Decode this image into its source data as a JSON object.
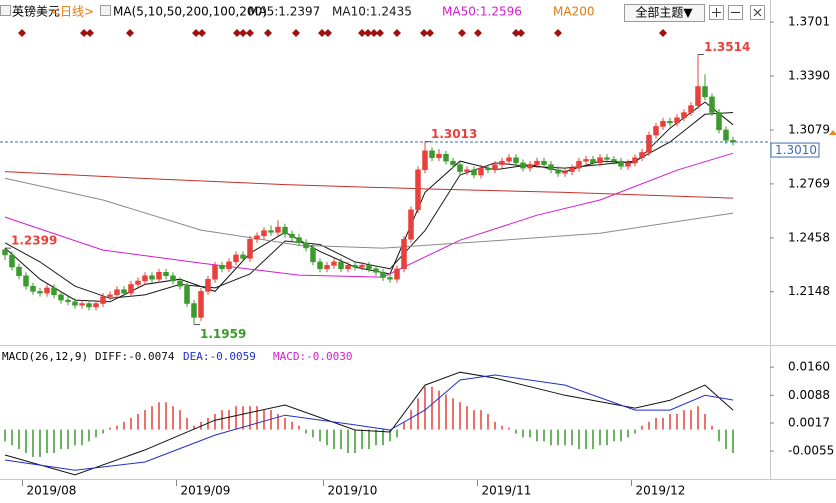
{
  "toolbar": {
    "theme_button": "全部主题▼"
  },
  "chart_data": [
    {
      "type": "candlestick",
      "title": "英镑美元",
      "period": "<日线>",
      "ma_params": "MA(5,10,50,200,100,200)",
      "xlim": [
        -0.714,
        109.286
      ],
      "ylim": [
        1.187,
        1.3805
      ],
      "yticks": [
        1.3701,
        {
          "value": 1.339,
          "label": "1.3390"
        },
        1.3079,
        1.2769,
        1.2458,
        1.2148
      ],
      "up_color": "#e8403a",
      "down_color": "#3b9a2c",
      "last_price": {
        "value": 1.301,
        "label": "1.3010"
      },
      "candles": [
        [
          1.239,
          1.2399,
          1.233,
          1.236
        ],
        [
          1.236,
          1.238,
          1.227,
          1.229
        ],
        [
          1.229,
          1.231,
          1.222,
          1.224
        ],
        [
          1.224,
          1.226,
          1.216,
          1.218
        ],
        [
          1.218,
          1.22,
          1.213,
          1.215
        ],
        [
          1.215,
          1.217,
          1.212,
          1.214
        ],
        [
          1.214,
          1.219,
          1.212,
          1.217
        ],
        [
          1.217,
          1.219,
          1.211,
          1.213
        ],
        [
          1.213,
          1.215,
          1.208,
          1.21
        ],
        [
          1.21,
          1.212,
          1.207,
          1.209
        ],
        [
          1.209,
          1.211,
          1.205,
          1.207
        ],
        [
          1.207,
          1.21,
          1.205,
          1.208
        ],
        [
          1.208,
          1.21,
          1.204,
          1.206
        ],
        [
          1.206,
          1.21,
          1.204,
          1.208
        ],
        [
          1.208,
          1.214,
          1.206,
          1.212
        ],
        [
          1.212,
          1.215,
          1.21,
          1.213
        ],
        [
          1.213,
          1.218,
          1.211,
          1.216
        ],
        [
          1.216,
          1.218,
          1.212,
          1.214
        ],
        [
          1.214,
          1.221,
          1.212,
          1.219
        ],
        [
          1.219,
          1.223,
          1.217,
          1.221
        ],
        [
          1.221,
          1.226,
          1.219,
          1.224
        ],
        [
          1.224,
          1.226,
          1.22,
          1.222
        ],
        [
          1.222,
          1.228,
          1.22,
          1.226
        ],
        [
          1.226,
          1.228,
          1.222,
          1.224
        ],
        [
          1.224,
          1.226,
          1.219,
          1.221
        ],
        [
          1.221,
          1.223,
          1.216,
          1.218
        ],
        [
          1.218,
          1.22,
          1.206,
          1.208
        ],
        [
          1.208,
          1.21,
          1.1959,
          1.2
        ],
        [
          1.2,
          1.217,
          1.198,
          1.215
        ],
        [
          1.215,
          1.224,
          1.213,
          1.222
        ],
        [
          1.222,
          1.232,
          1.22,
          1.23
        ],
        [
          1.23,
          1.232,
          1.226,
          1.228
        ],
        [
          1.228,
          1.234,
          1.226,
          1.232
        ],
        [
          1.232,
          1.238,
          1.23,
          1.236
        ],
        [
          1.236,
          1.238,
          1.232,
          1.234
        ],
        [
          1.234,
          1.247,
          1.232,
          1.245
        ],
        [
          1.245,
          1.249,
          1.243,
          1.247
        ],
        [
          1.247,
          1.252,
          1.245,
          1.25
        ],
        [
          1.25,
          1.253,
          1.247,
          1.249
        ],
        [
          1.249,
          1.256,
          1.247,
          1.252
        ],
        [
          1.252,
          1.254,
          1.246,
          1.248
        ],
        [
          1.248,
          1.25,
          1.244,
          1.246
        ],
        [
          1.246,
          1.248,
          1.241,
          1.243
        ],
        [
          1.243,
          1.245,
          1.238,
          1.24
        ],
        [
          1.24,
          1.242,
          1.23,
          1.232
        ],
        [
          1.232,
          1.234,
          1.226,
          1.228
        ],
        [
          1.228,
          1.232,
          1.226,
          1.23
        ],
        [
          1.23,
          1.234,
          1.228,
          1.232
        ],
        [
          1.232,
          1.234,
          1.226,
          1.228
        ],
        [
          1.228,
          1.232,
          1.226,
          1.23
        ],
        [
          1.23,
          1.232,
          1.227,
          1.229
        ],
        [
          1.229,
          1.232,
          1.227,
          1.23
        ],
        [
          1.23,
          1.232,
          1.226,
          1.228
        ],
        [
          1.228,
          1.23,
          1.224,
          1.226
        ],
        [
          1.226,
          1.228,
          1.221,
          1.223
        ],
        [
          1.223,
          1.225,
          1.22,
          1.222
        ],
        [
          1.222,
          1.23,
          1.22,
          1.228
        ],
        [
          1.228,
          1.247,
          1.226,
          1.245
        ],
        [
          1.245,
          1.264,
          1.243,
          1.262
        ],
        [
          1.262,
          1.287,
          1.26,
          1.285
        ],
        [
          1.285,
          1.3013,
          1.283,
          1.296
        ],
        [
          1.296,
          1.298,
          1.29,
          1.292
        ],
        [
          1.292,
          1.297,
          1.29,
          1.294
        ],
        [
          1.294,
          1.296,
          1.288,
          1.29
        ],
        [
          1.29,
          1.292,
          1.286,
          1.288
        ],
        [
          1.288,
          1.29,
          1.282,
          1.284
        ],
        [
          1.284,
          1.287,
          1.282,
          1.285
        ],
        [
          1.285,
          1.287,
          1.28,
          1.282
        ],
        [
          1.282,
          1.288,
          1.28,
          1.286
        ],
        [
          1.286,
          1.288,
          1.283,
          1.285
        ],
        [
          1.285,
          1.29,
          1.283,
          1.288
        ],
        [
          1.288,
          1.292,
          1.286,
          1.29
        ],
        [
          1.29,
          1.294,
          1.288,
          1.292
        ],
        [
          1.292,
          1.294,
          1.287,
          1.289
        ],
        [
          1.289,
          1.291,
          1.284,
          1.286
        ],
        [
          1.286,
          1.29,
          1.284,
          1.288
        ],
        [
          1.288,
          1.292,
          1.286,
          1.29
        ],
        [
          1.29,
          1.292,
          1.286,
          1.288
        ],
        [
          1.288,
          1.29,
          1.283,
          1.285
        ],
        [
          1.285,
          1.287,
          1.281,
          1.283
        ],
        [
          1.283,
          1.286,
          1.281,
          1.284
        ],
        [
          1.284,
          1.288,
          1.282,
          1.286
        ],
        [
          1.286,
          1.292,
          1.284,
          1.29
        ],
        [
          1.29,
          1.293,
          1.288,
          1.291
        ],
        [
          1.291,
          1.293,
          1.287,
          1.289
        ],
        [
          1.289,
          1.294,
          1.287,
          1.292
        ],
        [
          1.292,
          1.294,
          1.289,
          1.291
        ],
        [
          1.291,
          1.293,
          1.288,
          1.29
        ],
        [
          1.29,
          1.292,
          1.285,
          1.287
        ],
        [
          1.287,
          1.291,
          1.285,
          1.289
        ],
        [
          1.289,
          1.294,
          1.287,
          1.292
        ],
        [
          1.292,
          1.297,
          1.29,
          1.295
        ],
        [
          1.295,
          1.307,
          1.293,
          1.305
        ],
        [
          1.305,
          1.312,
          1.303,
          1.31
        ],
        [
          1.31,
          1.315,
          1.308,
          1.313
        ],
        [
          1.313,
          1.315,
          1.31,
          1.312
        ],
        [
          1.312,
          1.317,
          1.31,
          1.315
        ],
        [
          1.315,
          1.32,
          1.313,
          1.318
        ],
        [
          1.318,
          1.324,
          1.316,
          1.322
        ],
        [
          1.322,
          1.3514,
          1.32,
          1.333
        ],
        [
          1.333,
          1.34,
          1.325,
          1.327
        ],
        [
          1.327,
          1.329,
          1.316,
          1.318
        ],
        [
          1.318,
          1.32,
          1.306,
          1.308
        ],
        [
          1.308,
          1.31,
          1.3,
          1.302
        ],
        [
          1.302,
          1.304,
          1.299,
          1.301
        ]
      ],
      "highlights": [
        {
          "index": 0,
          "field": 1,
          "color": "#e8403a"
        },
        {
          "index": 27,
          "field": 2,
          "color": "#3b9a2c"
        },
        {
          "index": 60,
          "field": 1,
          "color": "#e8403a"
        },
        {
          "index": 99,
          "field": 1,
          "color": "#e8403a"
        }
      ],
      "lines": [
        {
          "name": "MA5:1.2397",
          "color": "#111111",
          "x": [
            0,
            5,
            10,
            15,
            20,
            25,
            30,
            35,
            40,
            45,
            50,
            55,
            60,
            65,
            70,
            75,
            80,
            85,
            90,
            95,
            100,
            104
          ],
          "values": [
            1.24,
            1.222,
            1.21,
            1.209,
            1.219,
            1.222,
            1.215,
            1.237,
            1.249,
            1.238,
            1.229,
            1.225,
            1.272,
            1.29,
            1.285,
            1.288,
            1.284,
            1.29,
            1.289,
            1.309,
            1.324,
            1.311
          ]
        },
        {
          "name": "MA10:1.2435",
          "color": "#1a1a1a",
          "x": [
            0,
            5,
            10,
            15,
            20,
            25,
            30,
            35,
            40,
            45,
            50,
            55,
            60,
            65,
            70,
            75,
            80,
            85,
            90,
            95,
            100,
            104
          ],
          "values": [
            1.243,
            1.232,
            1.218,
            1.211,
            1.213,
            1.219,
            1.217,
            1.225,
            1.244,
            1.242,
            1.232,
            1.228,
            1.25,
            1.282,
            1.289,
            1.287,
            1.286,
            1.288,
            1.29,
            1.301,
            1.317,
            1.318
          ]
        },
        {
          "name": "MA50:1.2596",
          "color": "#d41bd4",
          "x": [
            0,
            14,
            28,
            42,
            54,
            65,
            76,
            85,
            96,
            104
          ],
          "values": [
            1.2578,
            1.2388,
            1.2313,
            1.2244,
            1.2232,
            1.2445,
            1.2589,
            1.2676,
            1.2848,
            1.2946
          ]
        },
        {
          "name": "MA200",
          "color": "#e07a10",
          "stroke": "#c8302a",
          "x": [
            0,
            20,
            40,
            60,
            80,
            104
          ],
          "values": [
            1.284,
            1.28,
            1.2765,
            1.274,
            1.272,
            1.2687
          ]
        },
        {
          "color": "#8a8a8a",
          "x": [
            0,
            14,
            28,
            42,
            54,
            71,
            85,
            104
          ],
          "values": [
            1.2802,
            1.2676,
            1.2503,
            1.2416,
            1.2399,
            1.2445,
            1.2485,
            1.2601
          ]
        }
      ]
    },
    {
      "type": "macd",
      "title": "MACD(26,12,9)",
      "xlim": [
        -0.714,
        109.286
      ],
      "ylim": [
        -0.0124,
        0.0204
      ],
      "yticks": [
        {
          "value": 0.016,
          "label": "0.0160"
        },
        0.0088,
        0.0017,
        -0.0055
      ],
      "xticks": [
        {
          "value": 2.5,
          "label": "2019/08"
        },
        {
          "value": 24.5,
          "label": "2019/09"
        },
        {
          "value": 45.5,
          "label": "2019/10"
        },
        {
          "value": 67.5,
          "label": "2019/11"
        },
        {
          "value": 89.5,
          "label": "2019/12"
        }
      ],
      "series": [
        {
          "name": "DIFF:-0.0074",
          "color": "#111111",
          "x": [
            0,
            10,
            20,
            30,
            40,
            50,
            55,
            60,
            65,
            70,
            80,
            90,
            95,
            100,
            104
          ],
          "values": [
            -0.0065,
            -0.0116,
            -0.0052,
            0.0024,
            0.0063,
            -0.0001,
            -0.0006,
            0.0114,
            0.0147,
            0.0132,
            0.0088,
            0.0055,
            0.0075,
            0.0114,
            0.005
          ]
        },
        {
          "name": "DEA:-0.0059",
          "color": "#1f2fd0",
          "x": [
            0,
            10,
            20,
            30,
            40,
            50,
            55,
            60,
            65,
            70,
            80,
            90,
            95,
            100,
            104
          ],
          "values": [
            -0.0078,
            -0.0104,
            -0.0083,
            -0.0014,
            0.0037,
            0.0012,
            -0.0001,
            0.005,
            0.0127,
            0.014,
            0.0114,
            0.005,
            0.005,
            0.0088,
            0.0076
          ]
        },
        {
          "name": "MACD:-0.0030",
          "color": "#d41bd4",
          "up_color": "#e8403a",
          "down_color": "#3b9a2c",
          "values": [
            -0.003,
            -0.004,
            -0.005,
            -0.006,
            -0.007,
            -0.007,
            -0.006,
            -0.006,
            -0.005,
            -0.005,
            -0.004,
            -0.004,
            -0.003,
            -0.002,
            -0.001,
            0.0005,
            0.001,
            0.002,
            0.003,
            0.004,
            0.005,
            0.006,
            0.007,
            0.007,
            0.006,
            0.005,
            0.003,
            0.001,
            0.002,
            0.003,
            0.004,
            0.005,
            0.005,
            0.006,
            0.006,
            0.006,
            0.006,
            0.005,
            0.005,
            0.004,
            0.003,
            0.002,
            0.001,
            -0.001,
            -0.002,
            -0.003,
            -0.004,
            -0.005,
            -0.005,
            -0.006,
            -0.006,
            -0.005,
            -0.005,
            -0.004,
            -0.004,
            -0.003,
            -0.002,
            0.002,
            0.005,
            0.008,
            0.011,
            0.011,
            0.01,
            0.009,
            0.008,
            0.007,
            0.006,
            0.005,
            0.005,
            0.004,
            0.002,
            0.001,
            0.0005,
            -0.001,
            -0.002,
            -0.002,
            -0.003,
            -0.003,
            -0.004,
            -0.004,
            -0.004,
            -0.004,
            -0.005,
            -0.005,
            -0.005,
            -0.004,
            -0.004,
            -0.003,
            -0.003,
            -0.002,
            -0.001,
            0.001,
            0.002,
            0.003,
            0.003,
            0.004,
            0.004,
            0.005,
            0.005,
            0.006,
            0.004,
            0.001,
            -0.003,
            -0.005,
            -0.006
          ]
        }
      ]
    }
  ]
}
